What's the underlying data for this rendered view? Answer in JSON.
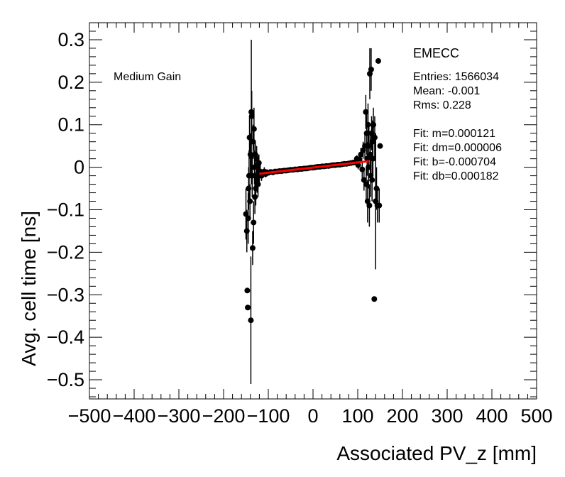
{
  "chart_data": {
    "type": "scatter",
    "xlabel": "Associated PV_z [mm]",
    "ylabel": "Avg. cell time [ns]",
    "xlim": [
      -500,
      500
    ],
    "ylim": [
      -0.545,
      0.34
    ],
    "xticks": [
      -500,
      -400,
      -300,
      -200,
      -100,
      0,
      100,
      200,
      300,
      400,
      500
    ],
    "xtick_labels": [
      "−500",
      "−400",
      "−300",
      "−200",
      "−100",
      "0",
      "100",
      "200",
      "300",
      "400",
      "500"
    ],
    "yticks": [
      0.3,
      0.2,
      0.1,
      0,
      -0.1,
      -0.2,
      -0.3,
      -0.4,
      -0.5
    ],
    "ytick_labels": [
      "0.3",
      "0.2",
      "0.1",
      "0",
      "−0.1",
      "−0.2",
      "−0.3",
      "−0.4",
      "−0.5"
    ],
    "annotation_left": "Medium Gain",
    "stats": {
      "title": "EMECC",
      "lines": [
        "Entries: 1566034",
        "Mean: -0.001",
        "Rms: 0.228",
        "",
        "Fit: m=0.000121",
        "Fit: dm=0.000006",
        "Fit: b=-0.000704",
        "Fit: db=0.000182"
      ]
    },
    "fit": {
      "m": 0.000121,
      "b": -0.000704,
      "x_range": [
        -120,
        125
      ],
      "color": "#ff0000"
    },
    "series": [
      {
        "name": "profile",
        "points": [
          {
            "x": -150,
            "y": -0.11,
            "err": 0.06
          },
          {
            "x": -148,
            "y": -0.15,
            "err": 0.05
          },
          {
            "x": -147,
            "y": -0.29,
            "err": 0.0
          },
          {
            "x": -146,
            "y": -0.33,
            "err": 0.0
          },
          {
            "x": -145,
            "y": -0.12,
            "err": 0.06
          },
          {
            "x": -144,
            "y": -0.05,
            "err": 0.05
          },
          {
            "x": -143,
            "y": -0.02,
            "err": 0.06
          },
          {
            "x": -142,
            "y": 0.07,
            "err": 0.05
          },
          {
            "x": -141,
            "y": -0.08,
            "err": 0.04
          },
          {
            "x": -140,
            "y": 0.03,
            "err": 0.05
          },
          {
            "x": -139,
            "y": -0.36,
            "err": 0.15
          },
          {
            "x": -138,
            "y": 0.13,
            "err": 0.17
          },
          {
            "x": -137,
            "y": 0.12,
            "err": 0.06
          },
          {
            "x": -136,
            "y": -0.02,
            "err": 0.05
          },
          {
            "x": -135,
            "y": -0.19,
            "err": 0.04
          },
          {
            "x": -134,
            "y": 0.06,
            "err": 0.04
          },
          {
            "x": -133,
            "y": -0.13,
            "err": 0.05
          },
          {
            "x": -132,
            "y": 0.09,
            "err": 0.05
          },
          {
            "x": -131,
            "y": 0.0,
            "err": 0.04
          },
          {
            "x": -130,
            "y": -0.07,
            "err": 0.04
          },
          {
            "x": -129,
            "y": 0.03,
            "err": 0.03
          },
          {
            "x": -128,
            "y": -0.05,
            "err": 0.04
          },
          {
            "x": -127,
            "y": -0.02,
            "err": 0.03
          },
          {
            "x": -126,
            "y": 0.02,
            "err": 0.03
          },
          {
            "x": -125,
            "y": -0.03,
            "err": 0.03
          },
          {
            "x": -124,
            "y": 0.0,
            "err": 0.03
          },
          {
            "x": -123,
            "y": -0.04,
            "err": 0.03
          },
          {
            "x": -122,
            "y": -0.01,
            "err": 0.02
          },
          {
            "x": -121,
            "y": 0.01,
            "err": 0.02
          },
          {
            "x": -120,
            "y": -0.02,
            "err": 0.02
          },
          {
            "x": -118,
            "y": -0.01,
            "err": 0.015
          },
          {
            "x": -115,
            "y": -0.02,
            "err": 0.012
          },
          {
            "x": -112,
            "y": -0.015,
            "err": 0.01
          },
          {
            "x": -109,
            "y": -0.01,
            "err": 0.01
          },
          {
            "x": -106,
            "y": -0.016,
            "err": 0.008
          },
          {
            "x": -103,
            "y": -0.012,
            "err": 0.007
          },
          {
            "x": -100,
            "y": -0.013,
            "err": 0.006
          },
          {
            "x": -95,
            "y": -0.011,
            "err": 0.005
          },
          {
            "x": -90,
            "y": -0.012,
            "err": 0.005
          },
          {
            "x": -85,
            "y": -0.01,
            "err": 0.004
          },
          {
            "x": -80,
            "y": -0.01,
            "err": 0.004
          },
          {
            "x": -75,
            "y": -0.009,
            "err": 0.004
          },
          {
            "x": -70,
            "y": -0.009,
            "err": 0.003
          },
          {
            "x": -65,
            "y": -0.008,
            "err": 0.003
          },
          {
            "x": -60,
            "y": -0.008,
            "err": 0.003
          },
          {
            "x": -55,
            "y": -0.007,
            "err": 0.003
          },
          {
            "x": -50,
            "y": -0.006,
            "err": 0.003
          },
          {
            "x": -45,
            "y": -0.006,
            "err": 0.003
          },
          {
            "x": -40,
            "y": -0.005,
            "err": 0.003
          },
          {
            "x": -35,
            "y": -0.005,
            "err": 0.003
          },
          {
            "x": -30,
            "y": -0.004,
            "err": 0.003
          },
          {
            "x": -25,
            "y": -0.004,
            "err": 0.003
          },
          {
            "x": -20,
            "y": -0.003,
            "err": 0.003
          },
          {
            "x": -15,
            "y": -0.003,
            "err": 0.003
          },
          {
            "x": -10,
            "y": -0.002,
            "err": 0.003
          },
          {
            "x": -5,
            "y": -0.001,
            "err": 0.003
          },
          {
            "x": 0,
            "y": -0.001,
            "err": 0.003
          },
          {
            "x": 5,
            "y": 0.0,
            "err": 0.003
          },
          {
            "x": 10,
            "y": 0.001,
            "err": 0.003
          },
          {
            "x": 15,
            "y": 0.001,
            "err": 0.003
          },
          {
            "x": 20,
            "y": 0.002,
            "err": 0.003
          },
          {
            "x": 25,
            "y": 0.002,
            "err": 0.003
          },
          {
            "x": 30,
            "y": 0.003,
            "err": 0.003
          },
          {
            "x": 35,
            "y": 0.003,
            "err": 0.003
          },
          {
            "x": 40,
            "y": 0.004,
            "err": 0.003
          },
          {
            "x": 45,
            "y": 0.005,
            "err": 0.003
          },
          {
            "x": 50,
            "y": 0.005,
            "err": 0.003
          },
          {
            "x": 55,
            "y": 0.006,
            "err": 0.003
          },
          {
            "x": 60,
            "y": 0.006,
            "err": 0.003
          },
          {
            "x": 65,
            "y": 0.007,
            "err": 0.004
          },
          {
            "x": 70,
            "y": 0.008,
            "err": 0.004
          },
          {
            "x": 75,
            "y": 0.008,
            "err": 0.004
          },
          {
            "x": 80,
            "y": 0.009,
            "err": 0.005
          },
          {
            "x": 85,
            "y": 0.01,
            "err": 0.005
          },
          {
            "x": 90,
            "y": 0.011,
            "err": 0.006
          },
          {
            "x": 95,
            "y": 0.012,
            "err": 0.007
          },
          {
            "x": 98,
            "y": 0.02,
            "err": 0.008
          },
          {
            "x": 101,
            "y": 0.005,
            "err": 0.01
          },
          {
            "x": 104,
            "y": 0.018,
            "err": 0.012
          },
          {
            "x": 107,
            "y": 0.03,
            "err": 0.015
          },
          {
            "x": 110,
            "y": -0.005,
            "err": 0.02
          },
          {
            "x": 112,
            "y": 0.04,
            "err": 0.02
          },
          {
            "x": 114,
            "y": -0.03,
            "err": 0.025
          },
          {
            "x": 116,
            "y": 0.05,
            "err": 0.03
          },
          {
            "x": 118,
            "y": 0.13,
            "err": 0.04
          },
          {
            "x": 119,
            "y": -0.04,
            "err": 0.04
          },
          {
            "x": 120,
            "y": 0.08,
            "err": 0.05
          },
          {
            "x": 121,
            "y": 0.02,
            "err": 0.04
          },
          {
            "x": 122,
            "y": -0.08,
            "err": 0.05
          },
          {
            "x": 123,
            "y": 0.1,
            "err": 0.05
          },
          {
            "x": 124,
            "y": 0.0,
            "err": 0.05
          },
          {
            "x": 125,
            "y": 0.05,
            "err": 0.05
          },
          {
            "x": 126,
            "y": -0.09,
            "err": 0.05
          },
          {
            "x": 127,
            "y": 0.22,
            "err": 0.06
          },
          {
            "x": 128,
            "y": 0.03,
            "err": 0.05
          },
          {
            "x": 129,
            "y": -0.02,
            "err": 0.05
          },
          {
            "x": 130,
            "y": 0.23,
            "err": 0.05
          },
          {
            "x": 131,
            "y": 0.08,
            "err": 0.04
          },
          {
            "x": 132,
            "y": -0.03,
            "err": 0.05
          },
          {
            "x": 133,
            "y": 0.06,
            "err": 0.05
          },
          {
            "x": 134,
            "y": 0.02,
            "err": 0.04
          },
          {
            "x": 135,
            "y": 0.1,
            "err": 0.04
          },
          {
            "x": 137,
            "y": -0.31,
            "err": 0.0
          },
          {
            "x": 138,
            "y": 0.07,
            "err": 0.05
          },
          {
            "x": 140,
            "y": -0.08,
            "err": 0.16
          },
          {
            "x": 142,
            "y": -0.05,
            "err": 0.05
          },
          {
            "x": 144,
            "y": -0.09,
            "err": 0.04
          },
          {
            "x": 146,
            "y": 0.25,
            "err": 0.0
          },
          {
            "x": 148,
            "y": -0.09,
            "err": 0.04
          },
          {
            "x": 150,
            "y": 0.05,
            "err": 0.0
          }
        ]
      }
    ]
  }
}
